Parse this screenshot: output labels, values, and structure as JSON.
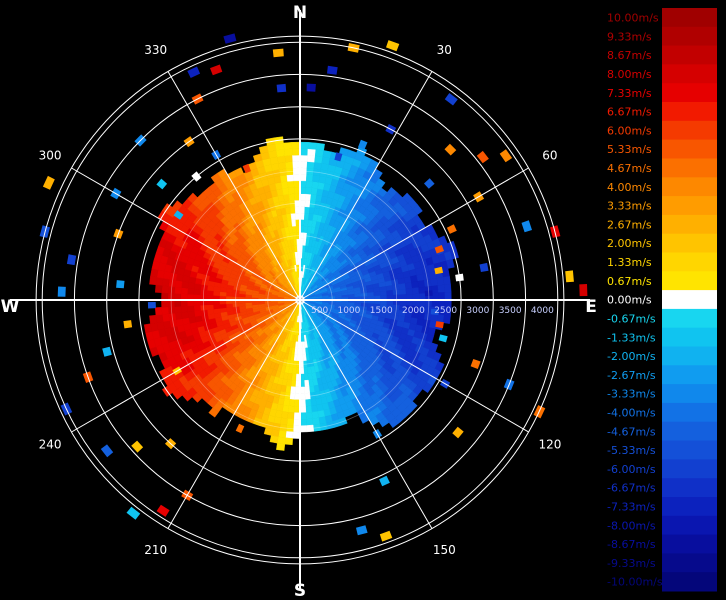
{
  "chart_data": {
    "type": "polar-heatmap",
    "title": "",
    "cardinals": {
      "n": "N",
      "e": "E",
      "s": "S",
      "w": "W"
    },
    "bearing_labels": [
      {
        "deg": 30,
        "text": "30"
      },
      {
        "deg": 60,
        "text": "60"
      },
      {
        "deg": 120,
        "text": "120"
      },
      {
        "deg": 150,
        "text": "150"
      },
      {
        "deg": 210,
        "text": "210"
      },
      {
        "deg": 240,
        "text": "240"
      },
      {
        "deg": 300,
        "text": "300"
      },
      {
        "deg": 330,
        "text": "330"
      }
    ],
    "range_rings": [
      500,
      1000,
      1500,
      2000,
      2500,
      3000,
      3500,
      4000
    ],
    "range_labels": [
      "500",
      "1000",
      "1500",
      "2000",
      "2500",
      "3000",
      "3500",
      "4000"
    ],
    "max_range": 4500,
    "azimuth_lines_deg": [
      0,
      30,
      60,
      90,
      120,
      150,
      180,
      210,
      240,
      270,
      300,
      330
    ],
    "velocity_pattern": {
      "inner_echo_radius": 2300,
      "approaching_sector": "0-180 deg (blue, negative)",
      "receding_sector": "180-360 deg (red, positive)",
      "peak_positive_ms": 8.0,
      "peak_negative_ms": -7.0
    },
    "scatter_cells": [
      {
        "az": 3,
        "r": 3300,
        "v": -8.5
      },
      {
        "az": 12,
        "r": 4000,
        "v": 2.5
      },
      {
        "az": 20,
        "r": 4200,
        "v": 2.0
      },
      {
        "az": 8,
        "r": 3600,
        "v": -7.3
      },
      {
        "az": 355,
        "r": 3300,
        "v": -6.5
      },
      {
        "az": 355,
        "r": 3850,
        "v": 3.0
      },
      {
        "az": 340,
        "r": 3800,
        "v": 8.0
      },
      {
        "az": 335,
        "r": 3900,
        "v": -7.0
      },
      {
        "az": 345,
        "r": 4200,
        "v": -8.5
      },
      {
        "az": 37,
        "r": 3900,
        "v": -6.0
      },
      {
        "az": 45,
        "r": 3300,
        "v": 4.0
      },
      {
        "az": 52,
        "r": 3600,
        "v": 5.3
      },
      {
        "az": 55,
        "r": 3900,
        "v": 4.0
      },
      {
        "az": 60,
        "r": 3200,
        "v": 3.3
      },
      {
        "az": 48,
        "r": 2700,
        "v": -4.5
      },
      {
        "az": 65,
        "r": 2600,
        "v": 4.7
      },
      {
        "az": 70,
        "r": 2300,
        "v": 5.3
      },
      {
        "az": 72,
        "r": 3700,
        "v": -3.0
      },
      {
        "az": 75,
        "r": 4100,
        "v": 7.3
      },
      {
        "az": 78,
        "r": 2200,
        "v": 2.7
      },
      {
        "az": 80,
        "r": 2900,
        "v": -6.0
      },
      {
        "az": 82,
        "r": 2500,
        "v": 0.0
      },
      {
        "az": 85,
        "r": 4200,
        "v": 2.0
      },
      {
        "az": 87,
        "r": 2000,
        "v": -8.0
      },
      {
        "az": 88,
        "r": 4400,
        "v": 8.0
      },
      {
        "az": 95,
        "r": 2100,
        "v": -5.0
      },
      {
        "az": 100,
        "r": 2200,
        "v": 6.0
      },
      {
        "az": 105,
        "r": 2300,
        "v": -1.5
      },
      {
        "az": 110,
        "r": 2900,
        "v": 4.7
      },
      {
        "az": 112,
        "r": 3500,
        "v": -4.0
      },
      {
        "az": 115,
        "r": 4100,
        "v": 4.7
      },
      {
        "az": 120,
        "r": 2600,
        "v": -6.0
      },
      {
        "az": 130,
        "r": 3200,
        "v": 2.7
      },
      {
        "az": 150,
        "r": 2400,
        "v": -3.0
      },
      {
        "az": 155,
        "r": 3100,
        "v": -2.0
      },
      {
        "az": 160,
        "r": 3900,
        "v": 2.0
      },
      {
        "az": 165,
        "r": 3700,
        "v": -3.3
      },
      {
        "az": 200,
        "r": 1700,
        "v": 2.7
      },
      {
        "az": 205,
        "r": 2200,
        "v": 4.7
      },
      {
        "az": 210,
        "r": 3500,
        "v": 5.3
      },
      {
        "az": 213,
        "r": 3900,
        "v": 7.3
      },
      {
        "az": 218,
        "r": 4200,
        "v": -1.5
      },
      {
        "az": 222,
        "r": 3000,
        "v": 2.7
      },
      {
        "az": 228,
        "r": 3400,
        "v": 2.0
      },
      {
        "az": 232,
        "r": 3800,
        "v": -4.5
      },
      {
        "az": 240,
        "r": 2200,
        "v": 2.0
      },
      {
        "az": 245,
        "r": 4000,
        "v": -6.0
      },
      {
        "az": 250,
        "r": 3500,
        "v": 5.3
      },
      {
        "az": 255,
        "r": 3100,
        "v": -2.0
      },
      {
        "az": 262,
        "r": 2700,
        "v": 3.0
      },
      {
        "az": 268,
        "r": 2300,
        "v": -5.0
      },
      {
        "az": 272,
        "r": 3700,
        "v": -3.3
      },
      {
        "az": 275,
        "r": 2800,
        "v": -2.5
      },
      {
        "az": 280,
        "r": 3600,
        "v": -6.0
      },
      {
        "az": 285,
        "r": 4100,
        "v": -5.3
      },
      {
        "az": 290,
        "r": 3000,
        "v": 3.3
      },
      {
        "az": 295,
        "r": 4300,
        "v": 2.5
      },
      {
        "az": 300,
        "r": 3300,
        "v": -3.0
      },
      {
        "az": 305,
        "r": 2300,
        "v": -2.0
      },
      {
        "az": 310,
        "r": 2800,
        "v": -1.5
      },
      {
        "az": 315,
        "r": 3500,
        "v": -3.3
      },
      {
        "az": 320,
        "r": 2500,
        "v": 0.0
      },
      {
        "az": 325,
        "r": 3000,
        "v": 3.3
      },
      {
        "az": 330,
        "r": 2600,
        "v": -4.0
      },
      {
        "az": 333,
        "r": 3500,
        "v": 5.3
      },
      {
        "az": 338,
        "r": 2200,
        "v": 6.0
      },
      {
        "az": 15,
        "r": 2300,
        "v": -6.0
      },
      {
        "az": 22,
        "r": 2600,
        "v": -3.0
      },
      {
        "az": 28,
        "r": 3000,
        "v": -6.5
      }
    ]
  },
  "legend": {
    "labels": [
      "10.00m/s",
      "9.33m/s",
      "8.67m/s",
      "8.00m/s",
      "7.33m/s",
      "6.67m/s",
      "6.00m/s",
      "5.33m/s",
      "4.67m/s",
      "4.00m/s",
      "3.33m/s",
      "2.67m/s",
      "2.00m/s",
      "1.33m/s",
      "0.67m/s",
      "0.00m/s",
      "-0.67m/s",
      "-1.33m/s",
      "-2.00m/s",
      "-2.67m/s",
      "-3.33m/s",
      "-4.00m/s",
      "-4.67m/s",
      "-5.33m/s",
      "-6.00m/s",
      "-6.67m/s",
      "-7.33m/s",
      "-8.00m/s",
      "-8.67m/s",
      "-9.33m/s",
      "-10.00m/s"
    ],
    "colors": [
      "#a00000",
      "#b00000",
      "#c20000",
      "#d50000",
      "#e60000",
      "#f21a00",
      "#f53a00",
      "#f85600",
      "#fb7000",
      "#fd8800",
      "#ff9c00",
      "#ffb000",
      "#ffc400",
      "#ffd600",
      "#ffe400",
      "#ffffff",
      "#18d6f0",
      "#10c4f0",
      "#10b2f0",
      "#109cf0",
      "#1088ec",
      "#1272e6",
      "#1460de",
      "#1450d8",
      "#1240d0",
      "#1030c8",
      "#0c22be",
      "#0a16b0",
      "#080e9e",
      "#060a8c",
      "#04067a"
    ]
  }
}
